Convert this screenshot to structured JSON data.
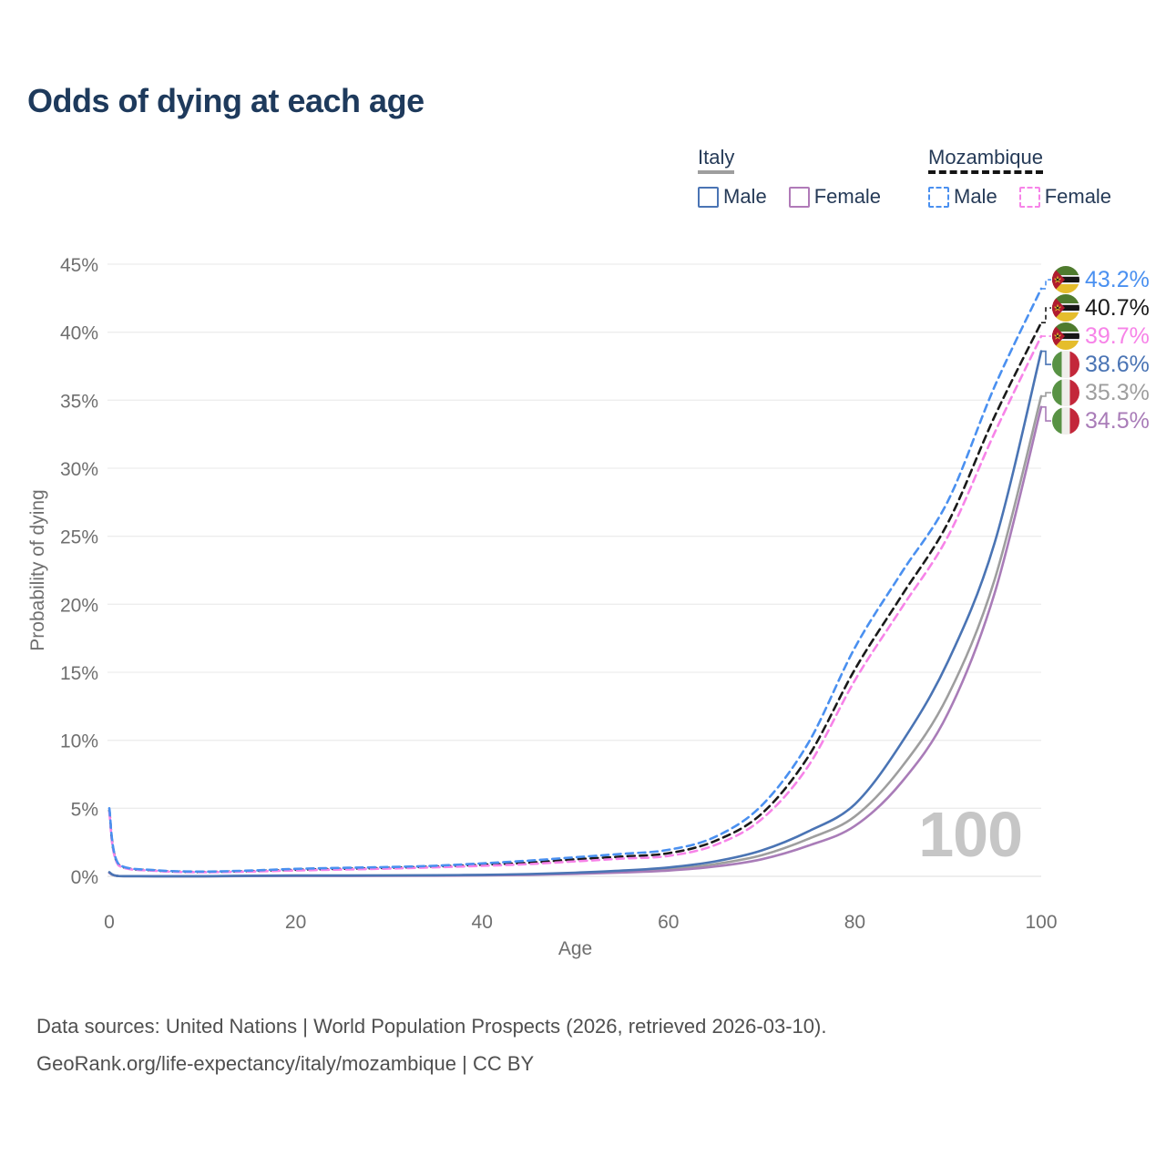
{
  "title": "Odds of dying at each age",
  "legend": {
    "groups": [
      {
        "label": "Italy",
        "underline": {
          "style": "solid",
          "color": "#9e9e9e"
        },
        "items": [
          {
            "label": "Male",
            "color": "#4a74b4",
            "dashed": false
          },
          {
            "label": "Female",
            "color": "#b07ab8",
            "dashed": false
          }
        ]
      },
      {
        "label": "Mozambique",
        "underline": {
          "style": "dashed",
          "color": "#141414"
        },
        "items": [
          {
            "label": "Male",
            "color": "#4a90f0",
            "dashed": true
          },
          {
            "label": "Female",
            "color": "#f783e8",
            "dashed": true
          }
        ]
      }
    ]
  },
  "chart_data": {
    "type": "line",
    "title": "Odds of dying at each age",
    "xlabel": "Age",
    "ylabel": "Probability of dying",
    "xlim": [
      0,
      100
    ],
    "ylim": [
      0,
      45
    ],
    "x_ticks": [
      0,
      20,
      40,
      60,
      80,
      100
    ],
    "y_ticks": [
      0,
      5,
      10,
      15,
      20,
      25,
      30,
      35,
      40,
      45
    ],
    "y_tick_suffix": "%",
    "grid": "horizontal",
    "hover_age_label": "100",
    "x": [
      0,
      1,
      5,
      10,
      15,
      20,
      25,
      30,
      35,
      40,
      45,
      50,
      55,
      60,
      65,
      70,
      75,
      80,
      85,
      90,
      95,
      100
    ],
    "series": [
      {
        "name": "Italy Overall",
        "country": "italy",
        "color": "#9e9e9e",
        "dashed": false,
        "end_label": "35.3%",
        "values": [
          0.27,
          0.02,
          0.01,
          0.01,
          0.03,
          0.05,
          0.05,
          0.06,
          0.07,
          0.09,
          0.14,
          0.22,
          0.35,
          0.52,
          0.9,
          1.55,
          2.75,
          4.4,
          8.0,
          13.3,
          21.8,
          35.3
        ]
      },
      {
        "name": "Italy Female",
        "country": "italy",
        "color": "#a97cb8",
        "dashed": false,
        "end_label": "34.5%",
        "values": [
          0.25,
          0.02,
          0.01,
          0.01,
          0.02,
          0.03,
          0.03,
          0.04,
          0.05,
          0.07,
          0.11,
          0.18,
          0.28,
          0.42,
          0.72,
          1.25,
          2.25,
          3.7,
          6.9,
          12.0,
          20.8,
          34.5
        ]
      },
      {
        "name": "Italy Male",
        "country": "italy",
        "color": "#4a74b4",
        "dashed": false,
        "end_label": "38.6%",
        "values": [
          0.3,
          0.02,
          0.01,
          0.01,
          0.04,
          0.06,
          0.06,
          0.07,
          0.08,
          0.11,
          0.17,
          0.27,
          0.42,
          0.65,
          1.1,
          1.9,
          3.3,
          5.3,
          9.8,
          15.8,
          24.5,
          38.6
        ]
      },
      {
        "name": "Mozambique Overall",
        "country": "mozambique",
        "color": "#1a1a1a",
        "dashed": true,
        "end_label": "40.7%",
        "values": [
          4.85,
          0.85,
          0.42,
          0.32,
          0.38,
          0.48,
          0.55,
          0.62,
          0.72,
          0.85,
          1.0,
          1.25,
          1.45,
          1.7,
          2.6,
          4.6,
          8.8,
          15.2,
          20.6,
          26.0,
          33.8,
          40.7
        ]
      },
      {
        "name": "Mozambique Female",
        "country": "mozambique",
        "color": "#f783e8",
        "dashed": true,
        "end_label": "39.7%",
        "values": [
          4.7,
          0.8,
          0.4,
          0.3,
          0.35,
          0.43,
          0.5,
          0.57,
          0.66,
          0.77,
          0.9,
          1.1,
          1.3,
          1.5,
          2.3,
          4.2,
          8.1,
          14.4,
          19.7,
          25.0,
          32.6,
          39.7
        ]
      },
      {
        "name": "Mozambique Male",
        "country": "mozambique",
        "color": "#4a90f0",
        "dashed": true,
        "end_label": "43.2%",
        "values": [
          5.0,
          0.9,
          0.45,
          0.35,
          0.42,
          0.55,
          0.62,
          0.68,
          0.78,
          0.95,
          1.15,
          1.4,
          1.65,
          1.95,
          2.9,
          5.2,
          9.8,
          16.8,
          22.3,
          27.6,
          36.0,
          43.2
        ]
      }
    ]
  },
  "footer": {
    "line1": "Data sources: United Nations | World Population Prospects (2026, retrieved 2026-03-10).",
    "line2": "GeoRank.org/life-expectancy/italy/mozambique | CC BY"
  }
}
